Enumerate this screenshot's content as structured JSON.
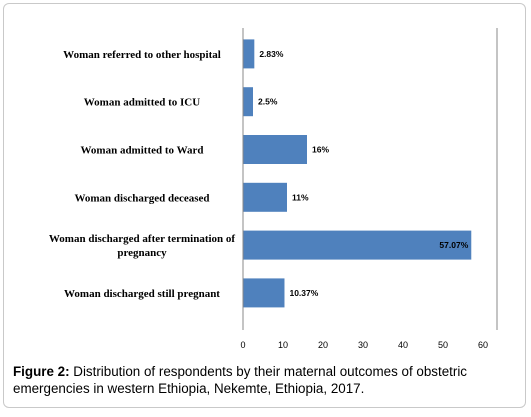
{
  "figure": {
    "label": "Figure 2:",
    "caption": " Distribution of respondents by their maternal outcomes of obstetric emergencies in western Ethiopia, Nekemte, Ethiopia, 2017."
  },
  "chart_data": {
    "type": "bar",
    "orientation": "horizontal",
    "categories": [
      [
        "Woman referred to other hospital"
      ],
      [
        "Woman admitted to ICU"
      ],
      [
        "Woman admitted to Ward"
      ],
      [
        "Woman discharged deceased"
      ],
      [
        "Woman discharged after termination of",
        "pregnancy"
      ],
      [
        "Woman discharged still pregnant"
      ]
    ],
    "values": [
      2.83,
      2.5,
      16,
      11,
      57.07,
      10.37
    ],
    "data_labels": [
      "2.83%",
      "2.5%",
      "16%",
      "11%",
      "57.07%",
      "10.37%"
    ],
    "xlim": [
      0,
      60
    ],
    "xticks": [
      0,
      10,
      20,
      30,
      40,
      50,
      60
    ],
    "bar_color": "#4f81bd",
    "grid": false
  }
}
